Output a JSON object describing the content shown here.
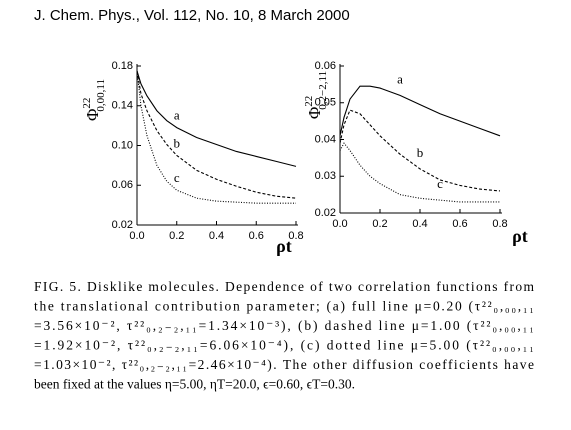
{
  "header": {
    "title": "J. Chem. Phys., Vol. 112, No. 10, 8 March 2000"
  },
  "chart_data": [
    {
      "type": "line",
      "ylabel": {
        "symbol": "Φ",
        "sup": "22",
        "sub": "0,00,11"
      },
      "xlabel": "ρt",
      "x": [
        0,
        0.02,
        0.05,
        0.1,
        0.15,
        0.2,
        0.3,
        0.4,
        0.5,
        0.6,
        0.7,
        0.8
      ],
      "series": [
        {
          "name": "a",
          "color": "#000000",
          "dash": "solid",
          "values": [
            0.175,
            0.162,
            0.15,
            0.135,
            0.125,
            0.118,
            0.108,
            0.101,
            0.094,
            0.089,
            0.084,
            0.079
          ]
        },
        {
          "name": "b",
          "color": "#000000",
          "dash": "dashed",
          "values": [
            0.175,
            0.152,
            0.135,
            0.115,
            0.101,
            0.09,
            0.075,
            0.066,
            0.059,
            0.053,
            0.049,
            0.047
          ]
        },
        {
          "name": "c",
          "color": "#000000",
          "dash": "dotted",
          "values": [
            0.175,
            0.14,
            0.11,
            0.08,
            0.064,
            0.055,
            0.047,
            0.044,
            0.043,
            0.042,
            0.042,
            0.042
          ]
        }
      ],
      "xlim": [
        0,
        0.8
      ],
      "xticks": [
        {
          "value": 0,
          "label": "0.0"
        },
        0.2,
        0.4,
        0.6,
        0.8
      ],
      "ylim": [
        0.02,
        0.18
      ],
      "yticks": [
        0.02,
        0.06,
        {
          "value": 0.1,
          "label": "0.10"
        },
        0.14,
        0.18
      ]
    },
    {
      "type": "line",
      "ylabel": {
        "symbol": "Φ",
        "sup": "22",
        "sub": "0,2−2,11"
      },
      "xlabel": "ρt",
      "x": [
        0,
        0.02,
        0.05,
        0.1,
        0.15,
        0.2,
        0.3,
        0.4,
        0.5,
        0.6,
        0.7,
        0.8
      ],
      "series": [
        {
          "name": "a",
          "color": "#000000",
          "dash": "solid",
          "values": [
            0.041,
            0.046,
            0.051,
            0.0545,
            0.0545,
            0.054,
            0.052,
            0.0495,
            0.047,
            0.045,
            0.043,
            0.041
          ]
        },
        {
          "name": "b",
          "color": "#000000",
          "dash": "dashed",
          "values": [
            0.039,
            0.044,
            0.048,
            0.047,
            0.044,
            0.041,
            0.036,
            0.032,
            0.029,
            0.0275,
            0.0265,
            0.026
          ]
        },
        {
          "name": "c",
          "color": "#000000",
          "dash": "dotted",
          "values": [
            0.037,
            0.039,
            0.037,
            0.033,
            0.03,
            0.028,
            0.025,
            0.024,
            0.0235,
            0.023,
            0.023,
            0.023
          ]
        }
      ],
      "xlim": [
        0,
        0.8
      ],
      "xticks": [
        {
          "value": 0,
          "label": "0.0"
        },
        0.2,
        0.4,
        0.6,
        0.8
      ],
      "ylim": [
        0.02,
        0.06
      ],
      "yticks": [
        0.02,
        0.03,
        0.04,
        0.05,
        0.06
      ]
    }
  ],
  "caption": {
    "lines": [
      "FIG. 5. Disklike molecules. Dependence of two correlation functions from",
      "the translational contribution parameter; (a) full line μ=0.20 (τ²²₀,₀₀,₁₁",
      "=3.56×10⁻², τ²²₀,₂₋₂,₁₁=1.34×10⁻³), (b) dashed line μ=1.00 (τ²²₀,₀₀,₁₁",
      "=1.92×10⁻², τ²²₀,₂₋₂,₁₁=6.06×10⁻⁴), (c) dotted line μ=5.00 (τ²²₀,₀₀,₁₁",
      "=1.03×10⁻², τ²²₀,₂₋₂,₁₁=2.46×10⁻⁴). The other diffusion coefficients have",
      "been fixed at the values η=5.00, ηT=20.0, ϵ=0.60, ϵT=0.30."
    ]
  }
}
